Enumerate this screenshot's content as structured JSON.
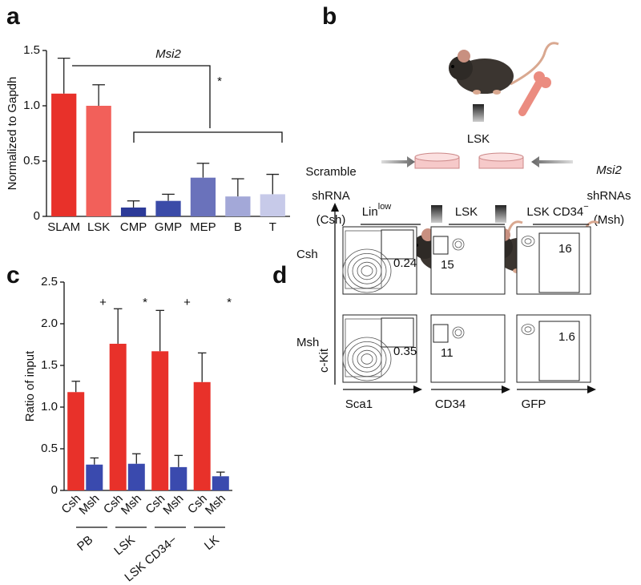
{
  "panel_labels": [
    "a",
    "b",
    "c",
    "d"
  ],
  "chart_data": [
    {
      "type": "bar",
      "ylabel": "Normalized to Gapdh",
      "categories": [
        "SLAM",
        "LSK",
        "CMP",
        "GMP",
        "MEP",
        "B",
        "T"
      ],
      "values": [
        1.11,
        1.0,
        0.08,
        0.14,
        0.35,
        0.18,
        0.2
      ],
      "errors": [
        0.32,
        0.19,
        0.06,
        0.06,
        0.13,
        0.16,
        0.18
      ],
      "colors": [
        "#e8312a",
        "#f2605a",
        "#2c3a98",
        "#3b4ba8",
        "#6a72bb",
        "#a3a8d8",
        "#c7cae9"
      ],
      "ylim": [
        0,
        1.5
      ],
      "yticks": [
        0,
        0.5,
        {
          "value": 1,
          "label": "1.0"
        },
        1.5
      ],
      "annotations": [
        "Msi2",
        "*"
      ]
    },
    {
      "type": "grouped_bar",
      "ylabel": "Ratio of input",
      "categories": [
        "PB",
        "LSK",
        "LSK CD34−",
        "LK"
      ],
      "series": [
        {
          "name": "Csh",
          "color": "#e8312a",
          "values": [
            1.18,
            1.76,
            1.67,
            1.3
          ],
          "errors": [
            0.13,
            0.42,
            0.49,
            0.35
          ]
        },
        {
          "name": "Msh",
          "color": "#3a4aae",
          "values": [
            0.31,
            0.32,
            0.28,
            0.17
          ],
          "errors": [
            0.08,
            0.12,
            0.14,
            0.05
          ]
        }
      ],
      "ylim": [
        0,
        2.5
      ],
      "yticks": [
        0,
        0.5,
        {
          "value": 1,
          "label": "1.0"
        },
        1.5,
        {
          "value": 2,
          "label": "2.0"
        },
        2.5
      ],
      "annotations": [
        "+",
        "*",
        "+",
        "*"
      ]
    }
  ],
  "diagram": {
    "source": "LSK",
    "left": [
      "Scramble",
      "shRNA",
      "(Csh)"
    ],
    "right": [
      "Msi2",
      "shRNAs",
      "(Msh)"
    ]
  },
  "flow": {
    "columns": [
      {
        "text": "Lin",
        "sup": "low"
      },
      {
        "text": "LSK"
      },
      {
        "text": "LSK CD34",
        "sup": "−"
      }
    ],
    "rows": [
      {
        "label": "Csh",
        "gates": [
          0.24,
          15,
          16
        ]
      },
      {
        "label": "Msh",
        "gates": [
          0.35,
          11,
          1.6
        ]
      }
    ],
    "axes": {
      "y": "c-Kit",
      "x": [
        "Sca1",
        "CD34",
        "GFP"
      ]
    }
  }
}
